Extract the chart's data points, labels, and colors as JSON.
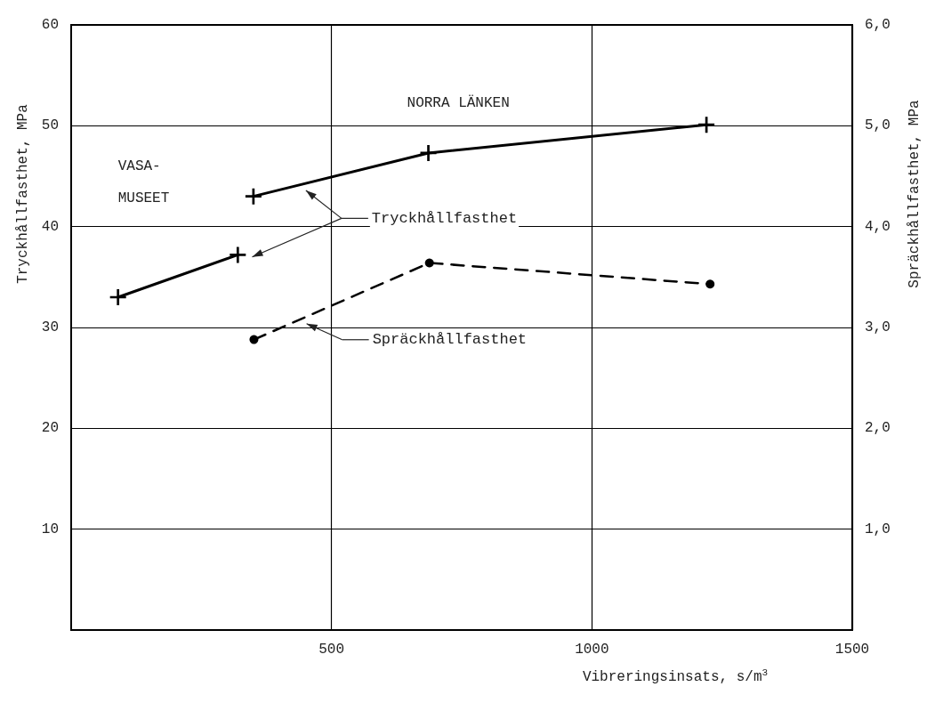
{
  "chart_data": {
    "type": "line",
    "xlabel": "Vibreringsinsats, s/m$^{3}$",
    "ylabel": "Tryckhållfasthet, MPa",
    "y2label": "Spräckhållfasthet, MPa",
    "xlim": [
      0,
      1500
    ],
    "xticks": [
      500,
      1000,
      1500
    ],
    "ylim": [
      0,
      60
    ],
    "yticks": [
      10,
      20,
      30,
      40,
      50,
      60
    ],
    "y2lim": [
      0,
      6
    ],
    "y2ticks": [
      {
        "value": 1,
        "label": "1,0"
      },
      {
        "value": 2,
        "label": "2,0"
      },
      {
        "value": 3,
        "label": "3,0"
      },
      {
        "value": 4,
        "label": "4,0"
      },
      {
        "value": 5,
        "label": "5,0"
      },
      {
        "value": 6,
        "label": "6,0"
      }
    ],
    "grid": true,
    "series": [
      {
        "color": "#000000",
        "x": [
          90,
          320
        ],
        "values": [
          33,
          37.2
        ],
        "marker": "cross",
        "line_style": "solid"
      },
      {
        "name": "Tryckhållfasthet",
        "color": "#000000",
        "x": [
          350,
          686,
          1220
        ],
        "values": [
          43,
          47.3,
          50.1
        ],
        "marker": "cross",
        "line_style": "solid"
      },
      {
        "name": "Spräckhållfasthet",
        "color": "#000000",
        "axis": "y2",
        "x": [
          351,
          688,
          1227
        ],
        "values": [
          2.88,
          3.64,
          3.43
        ],
        "marker": "circle",
        "line_style": "dashed"
      }
    ],
    "annotations": [
      "VASA-\nMUSEET",
      "NORRA LÄNKEN"
    ]
  }
}
